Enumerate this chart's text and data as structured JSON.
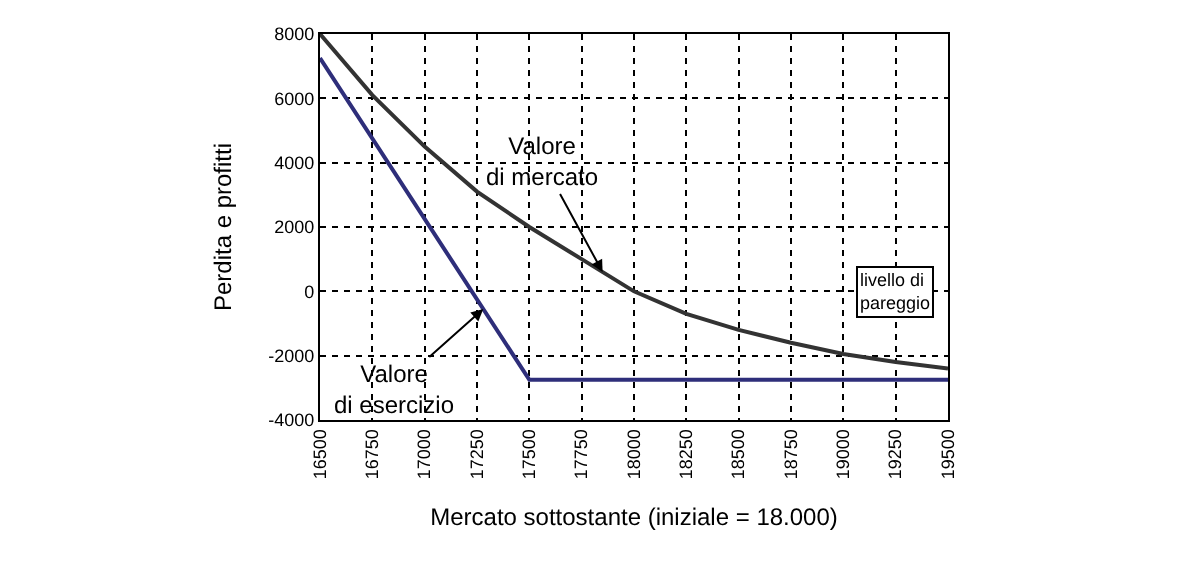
{
  "chart_data": {
    "type": "line",
    "xlabel": "Mercato sottostante (iniziale = 18.000)",
    "ylabel": "Perdita e profitti",
    "series": [
      {
        "color": "#333333",
        "x": [
          16500,
          16750,
          17000,
          17250,
          17500,
          17750,
          18000,
          18250,
          18500,
          18750,
          19000,
          19250,
          19500
        ],
        "values": [
          8000,
          6100,
          4500,
          3100,
          2000,
          1000,
          0,
          -700,
          -1200,
          -1600,
          -1950,
          -2200,
          -2400
        ]
      },
      {
        "color": "#2e2e7a",
        "x": [
          16500,
          17500,
          19500
        ],
        "values": [
          7250,
          -2750,
          -2750
        ]
      }
    ],
    "annotations": [
      {
        "text": "Valore\ndi mercato",
        "x": 17850,
        "y": 600
      },
      {
        "text": "Valore\ndi esercizio",
        "x": 17280,
        "y": -550
      },
      {
        "text": "livello di\npareggio",
        "x": 19250,
        "y": 0
      }
    ],
    "xlim": [
      16500,
      19500
    ],
    "xticks": [
      16500,
      16750,
      17000,
      17250,
      17500,
      17750,
      18000,
      18250,
      18500,
      18750,
      19000,
      19250,
      19500
    ],
    "ylim": [
      -4000,
      8000
    ],
    "yticks": [
      -4000,
      -2000,
      0,
      2000,
      4000,
      6000,
      8000
    ],
    "grid": true,
    "legend": false,
    "line_style": "solid",
    "marker": "none"
  }
}
